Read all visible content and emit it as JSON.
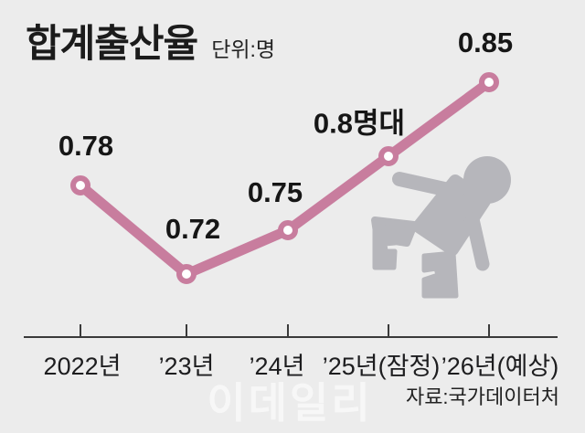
{
  "title": "합계출산율",
  "unit_label": "단위:명",
  "source": "자료:국가데이터처",
  "watermark": "이데일리",
  "colors": {
    "background": "#ececec",
    "line": "#c87d9e",
    "marker_fill": "#ffffff",
    "axis": "#3a3a3a",
    "baby_icon": "#b6b6bb",
    "text": "#1b1b1b",
    "watermark": "#ffffff"
  },
  "chart_data": {
    "type": "line",
    "title": "합계출산율",
    "unit": "명",
    "categories": [
      "2022년",
      "’23년",
      "’24년",
      "’25년(잠정)",
      "’26년(예상)"
    ],
    "values": [
      0.78,
      0.72,
      0.75,
      0.8,
      0.85
    ],
    "point_labels": [
      "0.78",
      "0.72",
      "0.75",
      "0.8명대",
      "0.85"
    ],
    "ylim": [
      0.7,
      0.87
    ],
    "grid": false,
    "legend": false,
    "x_axis_visible": true,
    "y_axis_visible": false
  }
}
